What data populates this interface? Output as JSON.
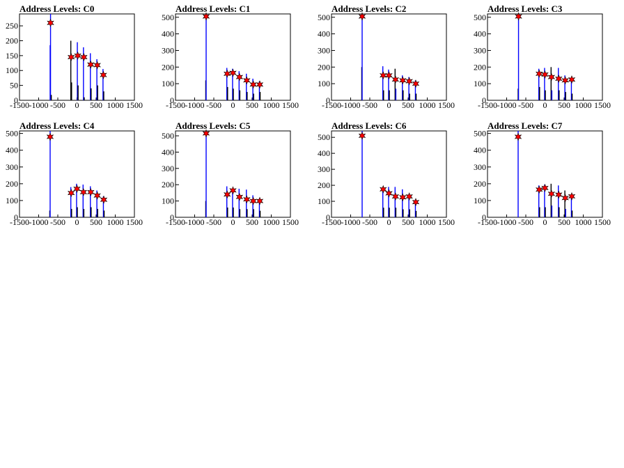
{
  "chart_data": [
    {
      "type": "histogram",
      "title": "Address Levels: C0",
      "ylim": [
        0,
        290
      ],
      "yticks": [
        0,
        50,
        100,
        150,
        200,
        250
      ],
      "xlim": [
        -1500,
        1500
      ],
      "xticks": [
        -1500,
        -1000,
        -500,
        0,
        500,
        1000,
        1500
      ],
      "peaks": [
        {
          "x": -690,
          "y": 260
        },
        {
          "x": -150,
          "y": 145
        },
        {
          "x": 20,
          "y": 150
        },
        {
          "x": 180,
          "y": 145
        },
        {
          "x": 360,
          "y": 120
        },
        {
          "x": 530,
          "y": 118
        },
        {
          "x": 690,
          "y": 85
        }
      ],
      "bars": [
        {
          "x": -700,
          "y": 185,
          "c": "blue"
        },
        {
          "x": -690,
          "y": 290,
          "c": "blue"
        },
        {
          "x": -670,
          "y": 18,
          "c": "black"
        },
        {
          "x": -160,
          "y": 200,
          "c": "black"
        },
        {
          "x": -140,
          "y": 60,
          "c": "black"
        },
        {
          "x": 10,
          "y": 195,
          "c": "blue"
        },
        {
          "x": 30,
          "y": 50,
          "c": "black"
        },
        {
          "x": 170,
          "y": 178,
          "c": "blue"
        },
        {
          "x": 190,
          "y": 10,
          "c": "black"
        },
        {
          "x": 350,
          "y": 158,
          "c": "blue"
        },
        {
          "x": 370,
          "y": 40,
          "c": "black"
        },
        {
          "x": 520,
          "y": 138,
          "c": "blue"
        },
        {
          "x": 540,
          "y": 50,
          "c": "black"
        },
        {
          "x": 680,
          "y": 105,
          "c": "blue"
        },
        {
          "x": 700,
          "y": 30,
          "c": "black"
        }
      ]
    },
    {
      "type": "histogram",
      "title": "Address Levels: C1",
      "ylim": [
        0,
        520
      ],
      "yticks": [
        0,
        100,
        200,
        300,
        400,
        500
      ],
      "xlim": [
        -1500,
        1500
      ],
      "xticks": [
        -1500,
        -1000,
        -500,
        0,
        500,
        1000,
        1500
      ],
      "peaks": [
        {
          "x": -700,
          "y": 505
        },
        {
          "x": -150,
          "y": 160
        },
        {
          "x": 0,
          "y": 165
        },
        {
          "x": 170,
          "y": 140
        },
        {
          "x": 360,
          "y": 120
        },
        {
          "x": 530,
          "y": 95
        },
        {
          "x": 700,
          "y": 95
        }
      ],
      "bars": [
        {
          "x": -710,
          "y": 120,
          "c": "black"
        },
        {
          "x": -700,
          "y": 520,
          "c": "blue"
        },
        {
          "x": -160,
          "y": 195,
          "c": "blue"
        },
        {
          "x": -140,
          "y": 80,
          "c": "black"
        },
        {
          "x": -10,
          "y": 190,
          "c": "blue"
        },
        {
          "x": 10,
          "y": 70,
          "c": "black"
        },
        {
          "x": 160,
          "y": 175,
          "c": "blue"
        },
        {
          "x": 180,
          "y": 60,
          "c": "black"
        },
        {
          "x": 350,
          "y": 160,
          "c": "blue"
        },
        {
          "x": 370,
          "y": 50,
          "c": "black"
        },
        {
          "x": 520,
          "y": 130,
          "c": "blue"
        },
        {
          "x": 540,
          "y": 40,
          "c": "black"
        },
        {
          "x": 690,
          "y": 115,
          "c": "blue"
        },
        {
          "x": 710,
          "y": 50,
          "c": "black"
        }
      ]
    },
    {
      "type": "histogram",
      "title": "Address Levels: C2",
      "ylim": [
        0,
        520
      ],
      "yticks": [
        0,
        100,
        200,
        300,
        400,
        500
      ],
      "xlim": [
        -1500,
        1500
      ],
      "xticks": [
        -1500,
        -1000,
        -500,
        0,
        500,
        1000,
        1500
      ],
      "peaks": [
        {
          "x": -700,
          "y": 505
        },
        {
          "x": -150,
          "y": 150
        },
        {
          "x": 0,
          "y": 150
        },
        {
          "x": 170,
          "y": 125
        },
        {
          "x": 360,
          "y": 120
        },
        {
          "x": 530,
          "y": 115
        },
        {
          "x": 700,
          "y": 100
        }
      ],
      "bars": [
        {
          "x": -710,
          "y": 200,
          "c": "black"
        },
        {
          "x": -700,
          "y": 520,
          "c": "blue"
        },
        {
          "x": -160,
          "y": 205,
          "c": "blue"
        },
        {
          "x": -140,
          "y": 60,
          "c": "black"
        },
        {
          "x": -10,
          "y": 185,
          "c": "blue"
        },
        {
          "x": 10,
          "y": 60,
          "c": "black"
        },
        {
          "x": 160,
          "y": 190,
          "c": "black"
        },
        {
          "x": 180,
          "y": 70,
          "c": "blue"
        },
        {
          "x": 350,
          "y": 150,
          "c": "blue"
        },
        {
          "x": 370,
          "y": 60,
          "c": "black"
        },
        {
          "x": 520,
          "y": 140,
          "c": "blue"
        },
        {
          "x": 540,
          "y": 40,
          "c": "black"
        },
        {
          "x": 690,
          "y": 120,
          "c": "blue"
        },
        {
          "x": 710,
          "y": 40,
          "c": "black"
        }
      ]
    },
    {
      "type": "histogram",
      "title": "Address Levels: C3",
      "ylim": [
        0,
        520
      ],
      "yticks": [
        0,
        100,
        200,
        300,
        400,
        500
      ],
      "xlim": [
        -1500,
        1500
      ],
      "xticks": [
        -1500,
        -1000,
        -500,
        0,
        500,
        1000,
        1500
      ],
      "peaks": [
        {
          "x": -690,
          "y": 505
        },
        {
          "x": -150,
          "y": 160
        },
        {
          "x": 0,
          "y": 155
        },
        {
          "x": 170,
          "y": 140
        },
        {
          "x": 360,
          "y": 130
        },
        {
          "x": 530,
          "y": 120
        },
        {
          "x": 700,
          "y": 125
        }
      ],
      "bars": [
        {
          "x": -700,
          "y": 70,
          "c": "black"
        },
        {
          "x": -690,
          "y": 520,
          "c": "blue"
        },
        {
          "x": -160,
          "y": 190,
          "c": "blue"
        },
        {
          "x": -140,
          "y": 80,
          "c": "black"
        },
        {
          "x": -10,
          "y": 195,
          "c": "blue"
        },
        {
          "x": 10,
          "y": 60,
          "c": "black"
        },
        {
          "x": 160,
          "y": 200,
          "c": "black"
        },
        {
          "x": 180,
          "y": 60,
          "c": "blue"
        },
        {
          "x": 350,
          "y": 195,
          "c": "blue"
        },
        {
          "x": 370,
          "y": 60,
          "c": "black"
        },
        {
          "x": 520,
          "y": 150,
          "c": "blue"
        },
        {
          "x": 540,
          "y": 50,
          "c": "black"
        },
        {
          "x": 690,
          "y": 125,
          "c": "blue"
        },
        {
          "x": 710,
          "y": 40,
          "c": "black"
        }
      ]
    },
    {
      "type": "histogram",
      "title": "Address Levels: C4",
      "ylim": [
        0,
        515
      ],
      "yticks": [
        0,
        100,
        200,
        300,
        400,
        500
      ],
      "xlim": [
        -1500,
        1500
      ],
      "xticks": [
        -1500,
        -1000,
        -500,
        0,
        500,
        1000,
        1500
      ],
      "peaks": [
        {
          "x": -700,
          "y": 480
        },
        {
          "x": -150,
          "y": 145
        },
        {
          "x": 0,
          "y": 170
        },
        {
          "x": 170,
          "y": 150
        },
        {
          "x": 360,
          "y": 150
        },
        {
          "x": 530,
          "y": 130
        },
        {
          "x": 700,
          "y": 105
        }
      ],
      "bars": [
        {
          "x": -710,
          "y": 40,
          "c": "black"
        },
        {
          "x": -700,
          "y": 515,
          "c": "blue"
        },
        {
          "x": -160,
          "y": 180,
          "c": "blue"
        },
        {
          "x": -140,
          "y": 50,
          "c": "black"
        },
        {
          "x": -10,
          "y": 200,
          "c": "blue"
        },
        {
          "x": 10,
          "y": 60,
          "c": "black"
        },
        {
          "x": 160,
          "y": 195,
          "c": "blue"
        },
        {
          "x": 180,
          "y": 50,
          "c": "black"
        },
        {
          "x": 350,
          "y": 185,
          "c": "blue"
        },
        {
          "x": 370,
          "y": 60,
          "c": "black"
        },
        {
          "x": 520,
          "y": 160,
          "c": "blue"
        },
        {
          "x": 540,
          "y": 50,
          "c": "black"
        },
        {
          "x": 690,
          "y": 125,
          "c": "blue"
        },
        {
          "x": 710,
          "y": 40,
          "c": "black"
        }
      ]
    },
    {
      "type": "histogram",
      "title": "Address Levels: C5",
      "ylim": [
        0,
        530
      ],
      "yticks": [
        0,
        100,
        200,
        300,
        400,
        500
      ],
      "xlim": [
        -1500,
        1500
      ],
      "xticks": [
        -1500,
        -1000,
        -500,
        0,
        500,
        1000,
        1500
      ],
      "peaks": [
        {
          "x": -700,
          "y": 515
        },
        {
          "x": -150,
          "y": 140
        },
        {
          "x": 0,
          "y": 165
        },
        {
          "x": 170,
          "y": 125
        },
        {
          "x": 360,
          "y": 110
        },
        {
          "x": 530,
          "y": 100
        },
        {
          "x": 700,
          "y": 100
        }
      ],
      "bars": [
        {
          "x": -710,
          "y": 100,
          "c": "black"
        },
        {
          "x": -700,
          "y": 530,
          "c": "blue"
        },
        {
          "x": -160,
          "y": 190,
          "c": "blue"
        },
        {
          "x": -140,
          "y": 60,
          "c": "black"
        },
        {
          "x": -10,
          "y": 175,
          "c": "blue"
        },
        {
          "x": 10,
          "y": 60,
          "c": "black"
        },
        {
          "x": 160,
          "y": 175,
          "c": "blue"
        },
        {
          "x": 180,
          "y": 50,
          "c": "black"
        },
        {
          "x": 350,
          "y": 170,
          "c": "blue"
        },
        {
          "x": 370,
          "y": 50,
          "c": "black"
        },
        {
          "x": 520,
          "y": 135,
          "c": "blue"
        },
        {
          "x": 540,
          "y": 50,
          "c": "black"
        },
        {
          "x": 690,
          "y": 115,
          "c": "blue"
        },
        {
          "x": 710,
          "y": 40,
          "c": "black"
        }
      ]
    },
    {
      "type": "histogram",
      "title": "Address Levels: C6",
      "ylim": [
        0,
        540
      ],
      "yticks": [
        0,
        100,
        200,
        300,
        400,
        500
      ],
      "xlim": [
        -1500,
        1500
      ],
      "xticks": [
        -1500,
        -1000,
        -500,
        0,
        500,
        1000,
        1500
      ],
      "peaks": [
        {
          "x": -700,
          "y": 510
        },
        {
          "x": -150,
          "y": 175
        },
        {
          "x": 0,
          "y": 150
        },
        {
          "x": 170,
          "y": 130
        },
        {
          "x": 360,
          "y": 125
        },
        {
          "x": 530,
          "y": 130
        },
        {
          "x": 700,
          "y": 95
        }
      ],
      "bars": [
        {
          "x": -700,
          "y": 540,
          "c": "blue"
        },
        {
          "x": -160,
          "y": 185,
          "c": "blue"
        },
        {
          "x": -140,
          "y": 60,
          "c": "black"
        },
        {
          "x": -10,
          "y": 190,
          "c": "blue"
        },
        {
          "x": 10,
          "y": 60,
          "c": "black"
        },
        {
          "x": 160,
          "y": 190,
          "c": "blue"
        },
        {
          "x": 180,
          "y": 60,
          "c": "black"
        },
        {
          "x": 350,
          "y": 175,
          "c": "blue"
        },
        {
          "x": 370,
          "y": 50,
          "c": "black"
        },
        {
          "x": 520,
          "y": 145,
          "c": "blue"
        },
        {
          "x": 540,
          "y": 50,
          "c": "black"
        },
        {
          "x": 690,
          "y": 110,
          "c": "blue"
        },
        {
          "x": 710,
          "y": 40,
          "c": "black"
        }
      ]
    },
    {
      "type": "histogram",
      "title": "Address Levels: C7",
      "ylim": [
        0,
        515
      ],
      "yticks": [
        0,
        100,
        200,
        300,
        400,
        500
      ],
      "xlim": [
        -1500,
        1500
      ],
      "xticks": [
        -1500,
        -1000,
        -500,
        0,
        500,
        1000,
        1500
      ],
      "peaks": [
        {
          "x": -700,
          "y": 480
        },
        {
          "x": -150,
          "y": 165
        },
        {
          "x": 0,
          "y": 175
        },
        {
          "x": 170,
          "y": 140
        },
        {
          "x": 360,
          "y": 135
        },
        {
          "x": 530,
          "y": 115
        },
        {
          "x": 700,
          "y": 125
        }
      ],
      "bars": [
        {
          "x": -700,
          "y": 515,
          "c": "blue"
        },
        {
          "x": -160,
          "y": 190,
          "c": "blue"
        },
        {
          "x": -140,
          "y": 60,
          "c": "black"
        },
        {
          "x": -10,
          "y": 195,
          "c": "blue"
        },
        {
          "x": 10,
          "y": 60,
          "c": "black"
        },
        {
          "x": 160,
          "y": 200,
          "c": "black"
        },
        {
          "x": 180,
          "y": 70,
          "c": "blue"
        },
        {
          "x": 350,
          "y": 190,
          "c": "blue"
        },
        {
          "x": 370,
          "y": 60,
          "c": "black"
        },
        {
          "x": 520,
          "y": 160,
          "c": "black"
        },
        {
          "x": 540,
          "y": 50,
          "c": "blue"
        },
        {
          "x": 690,
          "y": 120,
          "c": "blue"
        },
        {
          "x": 710,
          "y": 40,
          "c": "black"
        }
      ]
    }
  ],
  "colors": {
    "histogram_primary": "#0000ff",
    "histogram_secondary": "#000000",
    "peak_marker": "#ff0000",
    "marker_outline": "#000000",
    "axis": "#000000"
  }
}
